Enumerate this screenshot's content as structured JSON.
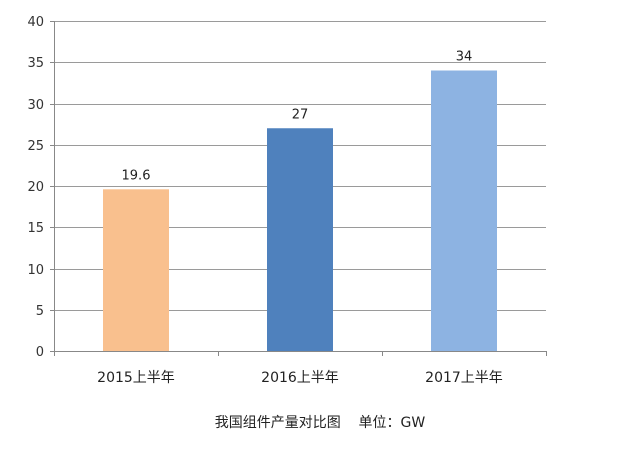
{
  "chart_data": {
    "type": "bar",
    "categories": [
      "2015上半年",
      "2016上半年",
      "2017上半年"
    ],
    "values": [
      19.6,
      27,
      34
    ],
    "data_labels": [
      "19.6",
      "27",
      "34"
    ],
    "bar_colors": [
      "#F9C08E",
      "#4F81BD",
      "#8DB3E2"
    ],
    "ylim": [
      0,
      40
    ],
    "y_ticks": [
      0,
      5,
      10,
      15,
      20,
      25,
      30,
      35,
      40
    ],
    "grid": true,
    "legend": "none",
    "caption": "我国组件产量对比图    单位：GW",
    "xlabel": "",
    "ylabel": ""
  }
}
